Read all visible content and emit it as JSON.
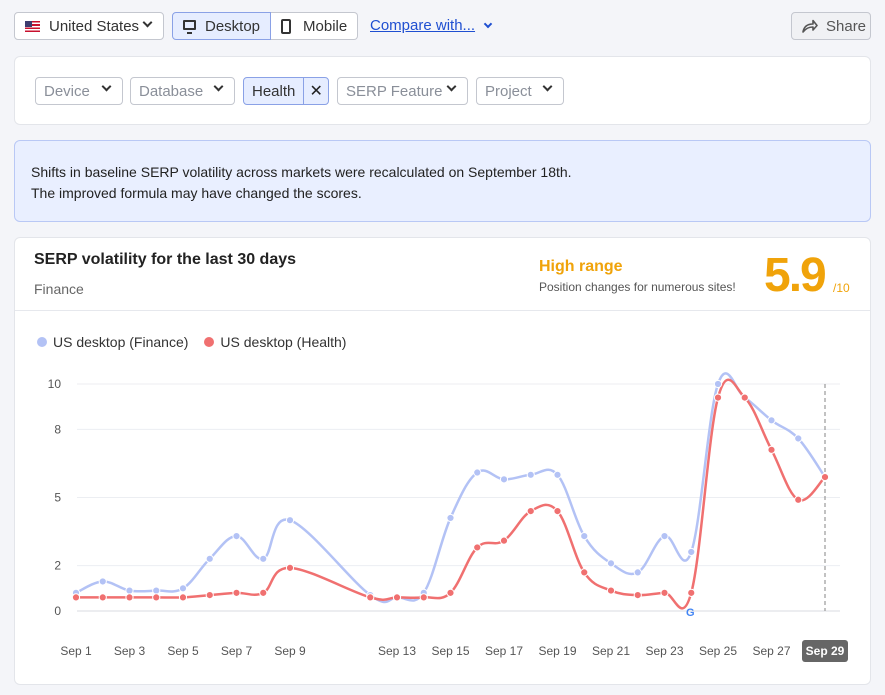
{
  "toolbar": {
    "country": "United States",
    "desktop": "Desktop",
    "mobile": "Mobile",
    "compare": "Compare with...",
    "share": "Share"
  },
  "filters": {
    "device": "Device",
    "database": "Database",
    "health": "Health",
    "serp_feature": "SERP Feature",
    "project": "Project"
  },
  "notice": {
    "line1": "Shifts in baseline SERP volatility across markets were recalculated on September 18th.",
    "line2": "The improved formula may have changed the scores."
  },
  "summary": {
    "title": "SERP volatility for the last 30 days",
    "subtitle": "Finance",
    "range_label": "High range",
    "range_desc": "Position changes for numerous sites!",
    "score": "5.9",
    "score_max": "/10"
  },
  "colors": {
    "finance": "#b3c2f5",
    "health": "#f07070",
    "accent": "#f0a30a"
  },
  "chart_data": {
    "type": "line",
    "x": [
      "Sep 1",
      "Sep 2",
      "Sep 3",
      "Sep 4",
      "Sep 5",
      "Sep 6",
      "Sep 7",
      "Sep 8",
      "Sep 9",
      "Sep 10",
      "Sep 11",
      "Sep 12",
      "Sep 13",
      "Sep 14",
      "Sep 15",
      "Sep 16",
      "Sep 17",
      "Sep 18",
      "Sep 19",
      "Sep 20",
      "Sep 21",
      "Sep 22",
      "Sep 23",
      "Sep 24",
      "Sep 25",
      "Sep 26",
      "Sep 27",
      "Sep 28",
      "Sep 29"
    ],
    "x_tick_labels": [
      "Sep 1",
      "Sep 3",
      "Sep 5",
      "Sep 7",
      "Sep 9",
      "Sep 13",
      "Sep 15",
      "Sep 17",
      "Sep 19",
      "Sep 21",
      "Sep 23",
      "Sep 25",
      "Sep 27",
      "Sep 29"
    ],
    "highlighted_x": "Sep 29",
    "y_ticks": [
      0,
      2,
      5,
      8,
      10
    ],
    "ylim": [
      0,
      10
    ],
    "series": [
      {
        "name": "US desktop (Finance)",
        "values": [
          0.8,
          1.3,
          0.9,
          0.9,
          1.0,
          2.3,
          3.3,
          2.3,
          4.0,
          null,
          null,
          0.7,
          0.6,
          0.8,
          4.1,
          6.1,
          5.8,
          6.0,
          6.0,
          3.3,
          2.1,
          1.7,
          3.3,
          2.6,
          10.0,
          9.4,
          8.4,
          7.6,
          5.9
        ]
      },
      {
        "name": "US desktop (Health)",
        "values": [
          0.6,
          0.6,
          0.6,
          0.6,
          0.6,
          0.7,
          0.8,
          0.8,
          1.9,
          null,
          null,
          0.6,
          0.6,
          0.6,
          0.8,
          2.8,
          3.1,
          4.4,
          4.4,
          1.7,
          0.9,
          0.7,
          0.8,
          0.8,
          9.4,
          9.4,
          7.1,
          4.9,
          5.9
        ]
      }
    ]
  }
}
